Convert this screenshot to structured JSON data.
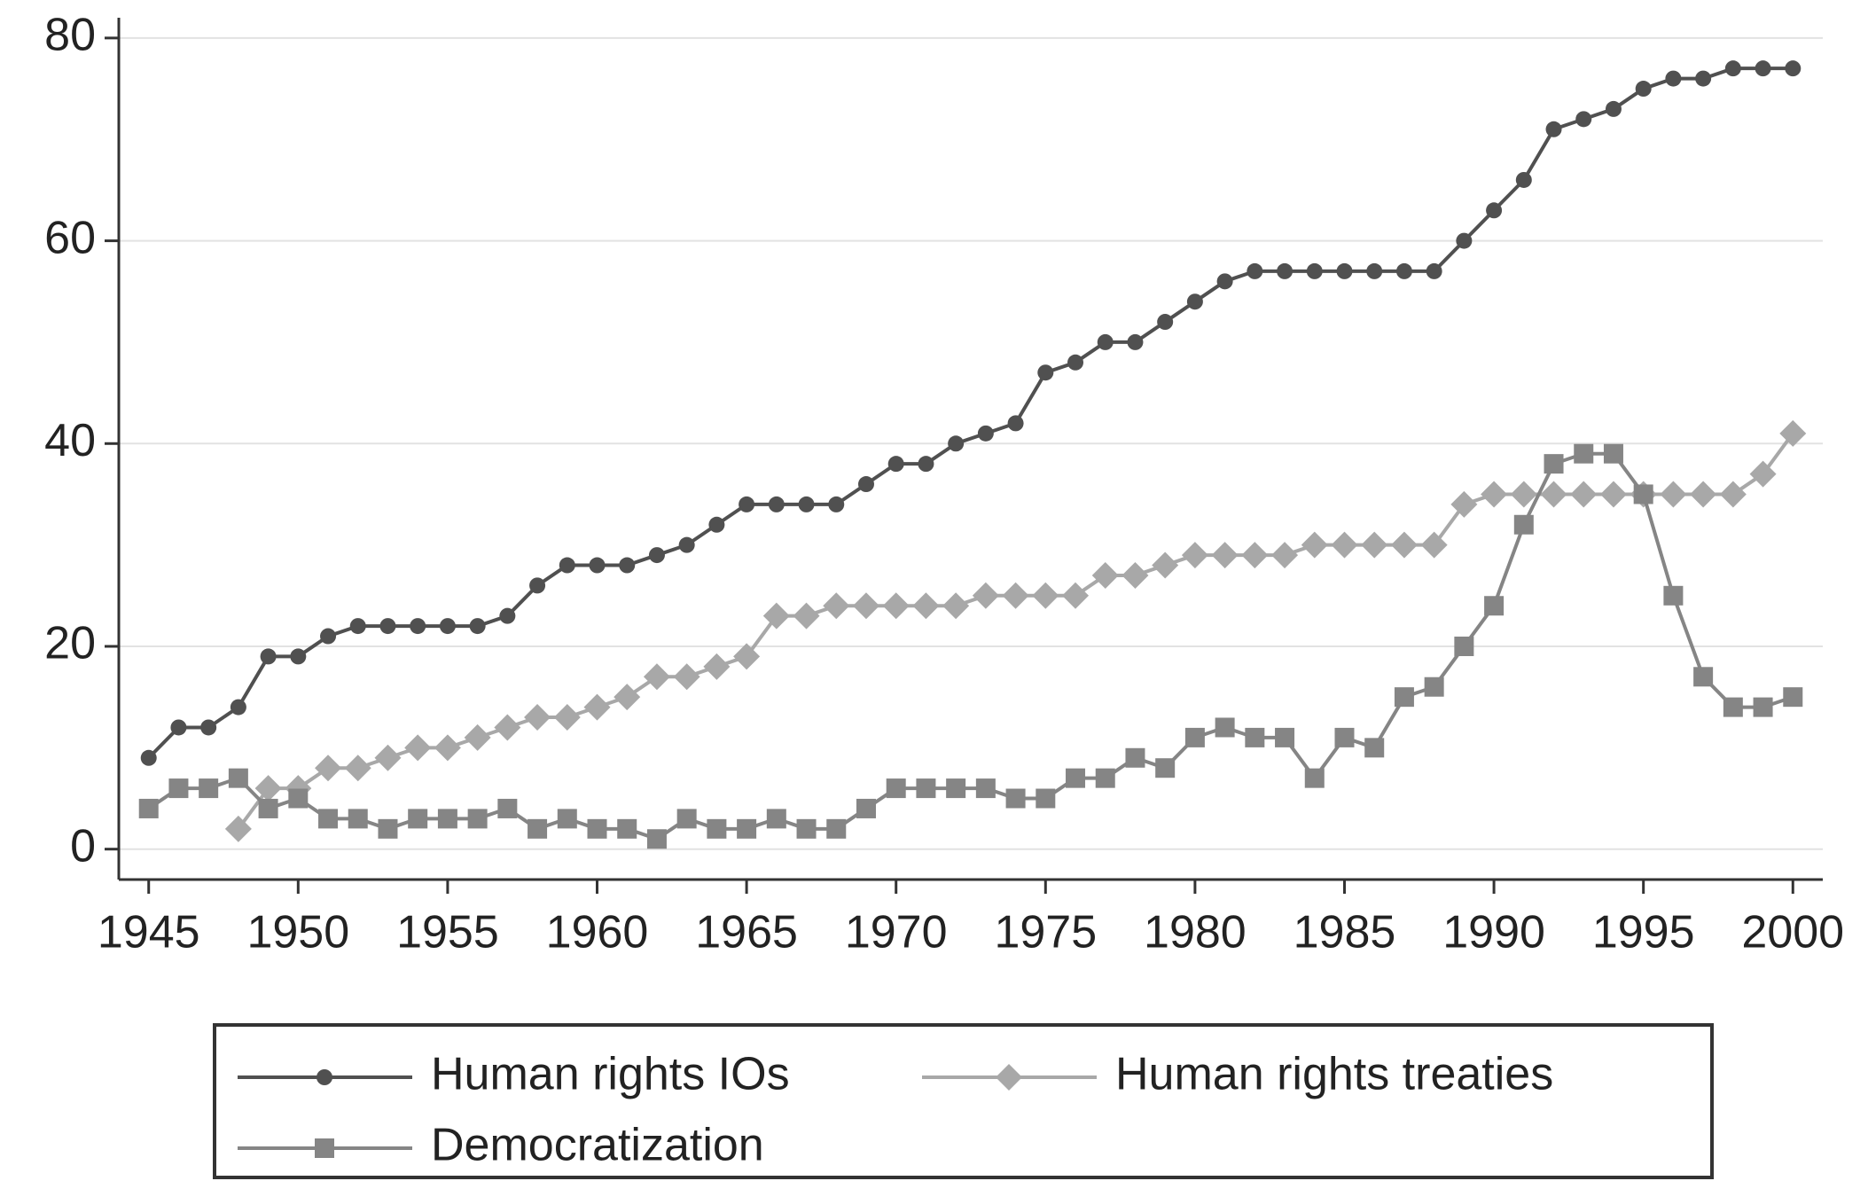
{
  "chart_data": {
    "type": "line",
    "x": [
      1945,
      1946,
      1947,
      1948,
      1949,
      1950,
      1951,
      1952,
      1953,
      1954,
      1955,
      1956,
      1957,
      1958,
      1959,
      1960,
      1961,
      1962,
      1963,
      1964,
      1965,
      1966,
      1967,
      1968,
      1969,
      1970,
      1971,
      1972,
      1973,
      1974,
      1975,
      1976,
      1977,
      1978,
      1979,
      1980,
      1981,
      1982,
      1983,
      1984,
      1985,
      1986,
      1987,
      1988,
      1989,
      1990,
      1991,
      1992,
      1993,
      1994,
      1995,
      1996,
      1997,
      1998,
      1999,
      2000
    ],
    "series": [
      {
        "name": "Human rights IOs",
        "color": "#505050",
        "marker": "circle",
        "values": [
          9,
          12,
          12,
          14,
          19,
          19,
          21,
          22,
          22,
          22,
          22,
          22,
          23,
          26,
          28,
          28,
          28,
          29,
          30,
          32,
          34,
          34,
          34,
          34,
          36,
          38,
          38,
          40,
          41,
          42,
          47,
          48,
          50,
          50,
          52,
          54,
          56,
          57,
          57,
          57,
          57,
          57,
          57,
          57,
          60,
          63,
          66,
          71,
          72,
          73,
          75,
          76,
          76,
          77,
          77,
          77
        ]
      },
      {
        "name": "Human rights treaties",
        "color": "#a8a8a8",
        "marker": "diamond",
        "values": [
          null,
          null,
          null,
          2,
          6,
          6,
          8,
          8,
          9,
          10,
          10,
          11,
          12,
          13,
          13,
          14,
          15,
          17,
          17,
          18,
          19,
          23,
          23,
          24,
          24,
          24,
          24,
          24,
          25,
          25,
          25,
          25,
          27,
          27,
          28,
          29,
          29,
          29,
          29,
          30,
          30,
          30,
          30,
          30,
          34,
          35,
          35,
          35,
          35,
          35,
          35,
          35,
          35,
          35,
          37,
          41
        ]
      },
      {
        "name": "Democratization",
        "color": "#858585",
        "marker": "square",
        "values": [
          4,
          6,
          6,
          7,
          4,
          5,
          3,
          3,
          2,
          3,
          3,
          3,
          4,
          2,
          3,
          2,
          2,
          1,
          3,
          2,
          2,
          3,
          2,
          2,
          4,
          6,
          6,
          6,
          6,
          5,
          5,
          7,
          7,
          9,
          8,
          11,
          12,
          11,
          11,
          7,
          11,
          10,
          15,
          16,
          20,
          24,
          32,
          38,
          39,
          39,
          35,
          25,
          17,
          14,
          14,
          15
        ]
      }
    ],
    "xlim": [
      1944,
      2001
    ],
    "xticks": [
      1945,
      1950,
      1955,
      1960,
      1965,
      1970,
      1975,
      1980,
      1985,
      1990,
      1995,
      2000
    ],
    "ylim": [
      -3,
      82
    ],
    "yticks": [
      0,
      20,
      40,
      60,
      80
    ],
    "grid": true,
    "legend": "bottom"
  }
}
